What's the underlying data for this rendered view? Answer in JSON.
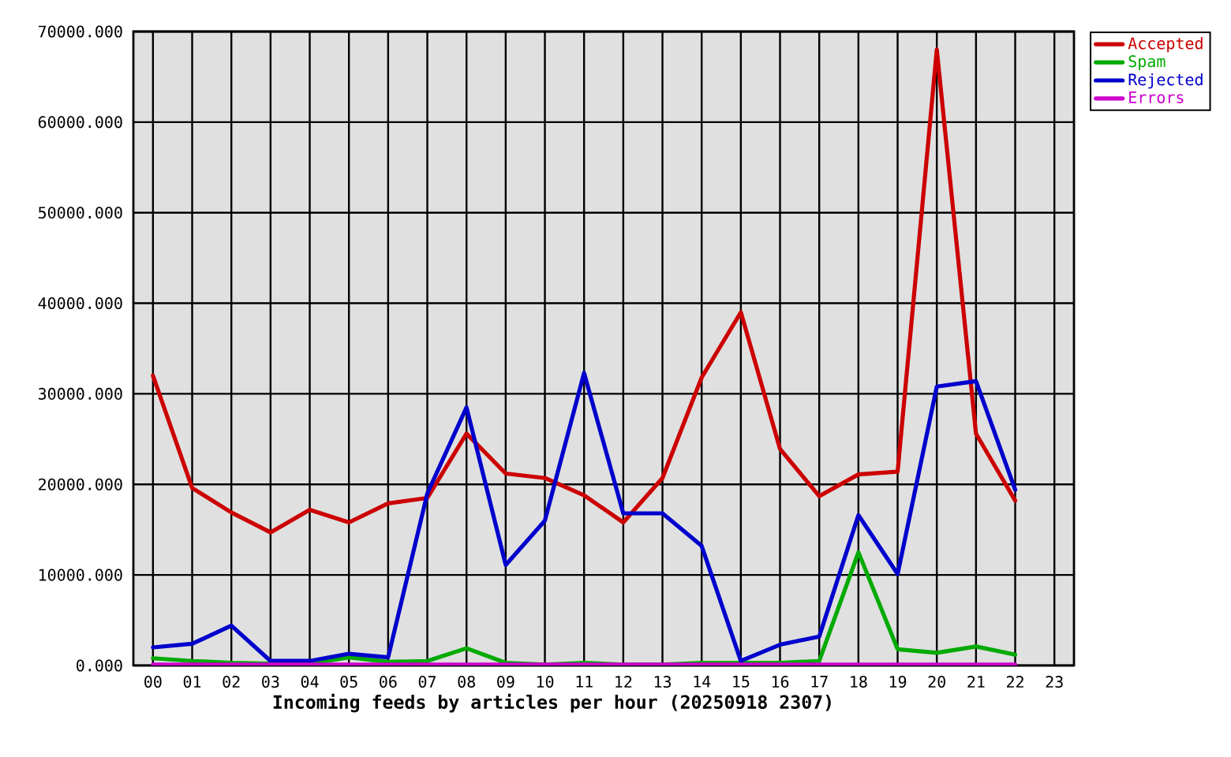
{
  "chart_data": {
    "type": "line",
    "xlabel": "Incoming feeds by articles per hour (20250918 2307)",
    "categories": [
      "00",
      "01",
      "02",
      "03",
      "04",
      "05",
      "06",
      "07",
      "08",
      "09",
      "10",
      "11",
      "12",
      "13",
      "14",
      "15",
      "16",
      "17",
      "18",
      "19",
      "20",
      "21",
      "22",
      "23"
    ],
    "series": [
      {
        "name": "Accepted",
        "color": "#cc0000",
        "values": [
          32000,
          19600,
          16900,
          14700,
          17200,
          15800,
          17900,
          18500,
          25600,
          21200,
          20700,
          18800,
          15800,
          20700,
          31800,
          39000,
          23900,
          18700,
          21100,
          21400,
          68000,
          25600,
          18200,
          null
        ]
      },
      {
        "name": "Spam",
        "color": "#00aa00",
        "values": [
          800,
          500,
          300,
          200,
          200,
          900,
          400,
          500,
          1900,
          300,
          100,
          300,
          100,
          100,
          300,
          300,
          300,
          500,
          12500,
          1800,
          1400,
          2100,
          1200,
          null
        ]
      },
      {
        "name": "Rejected",
        "color": "#0000cc",
        "values": [
          2000,
          2400,
          4400,
          500,
          500,
          1300,
          900,
          19000,
          28500,
          11100,
          16000,
          32300,
          16800,
          16800,
          13200,
          500,
          2300,
          3200,
          16600,
          10100,
          30800,
          31400,
          19400,
          null
        ]
      },
      {
        "name": "Errors",
        "color": "#cc00cc",
        "values": [
          100,
          100,
          100,
          100,
          100,
          100,
          100,
          100,
          100,
          100,
          100,
          100,
          100,
          100,
          100,
          100,
          100,
          100,
          100,
          100,
          100,
          100,
          100,
          null
        ]
      }
    ],
    "ylim": [
      0,
      70000
    ],
    "yticks": [
      {
        "value": 0,
        "label": "0.000"
      },
      {
        "value": 10000,
        "label": "10000.000"
      },
      {
        "value": 20000,
        "label": "20000.000"
      },
      {
        "value": 30000,
        "label": "30000.000"
      },
      {
        "value": 40000,
        "label": "40000.000"
      },
      {
        "value": 50000,
        "label": "50000.000"
      },
      {
        "value": 60000,
        "label": "60000.000"
      },
      {
        "value": 70000,
        "label": "70000.000"
      }
    ],
    "grid": true,
    "legend": "top right",
    "marker": "none",
    "line_style": "solid"
  }
}
